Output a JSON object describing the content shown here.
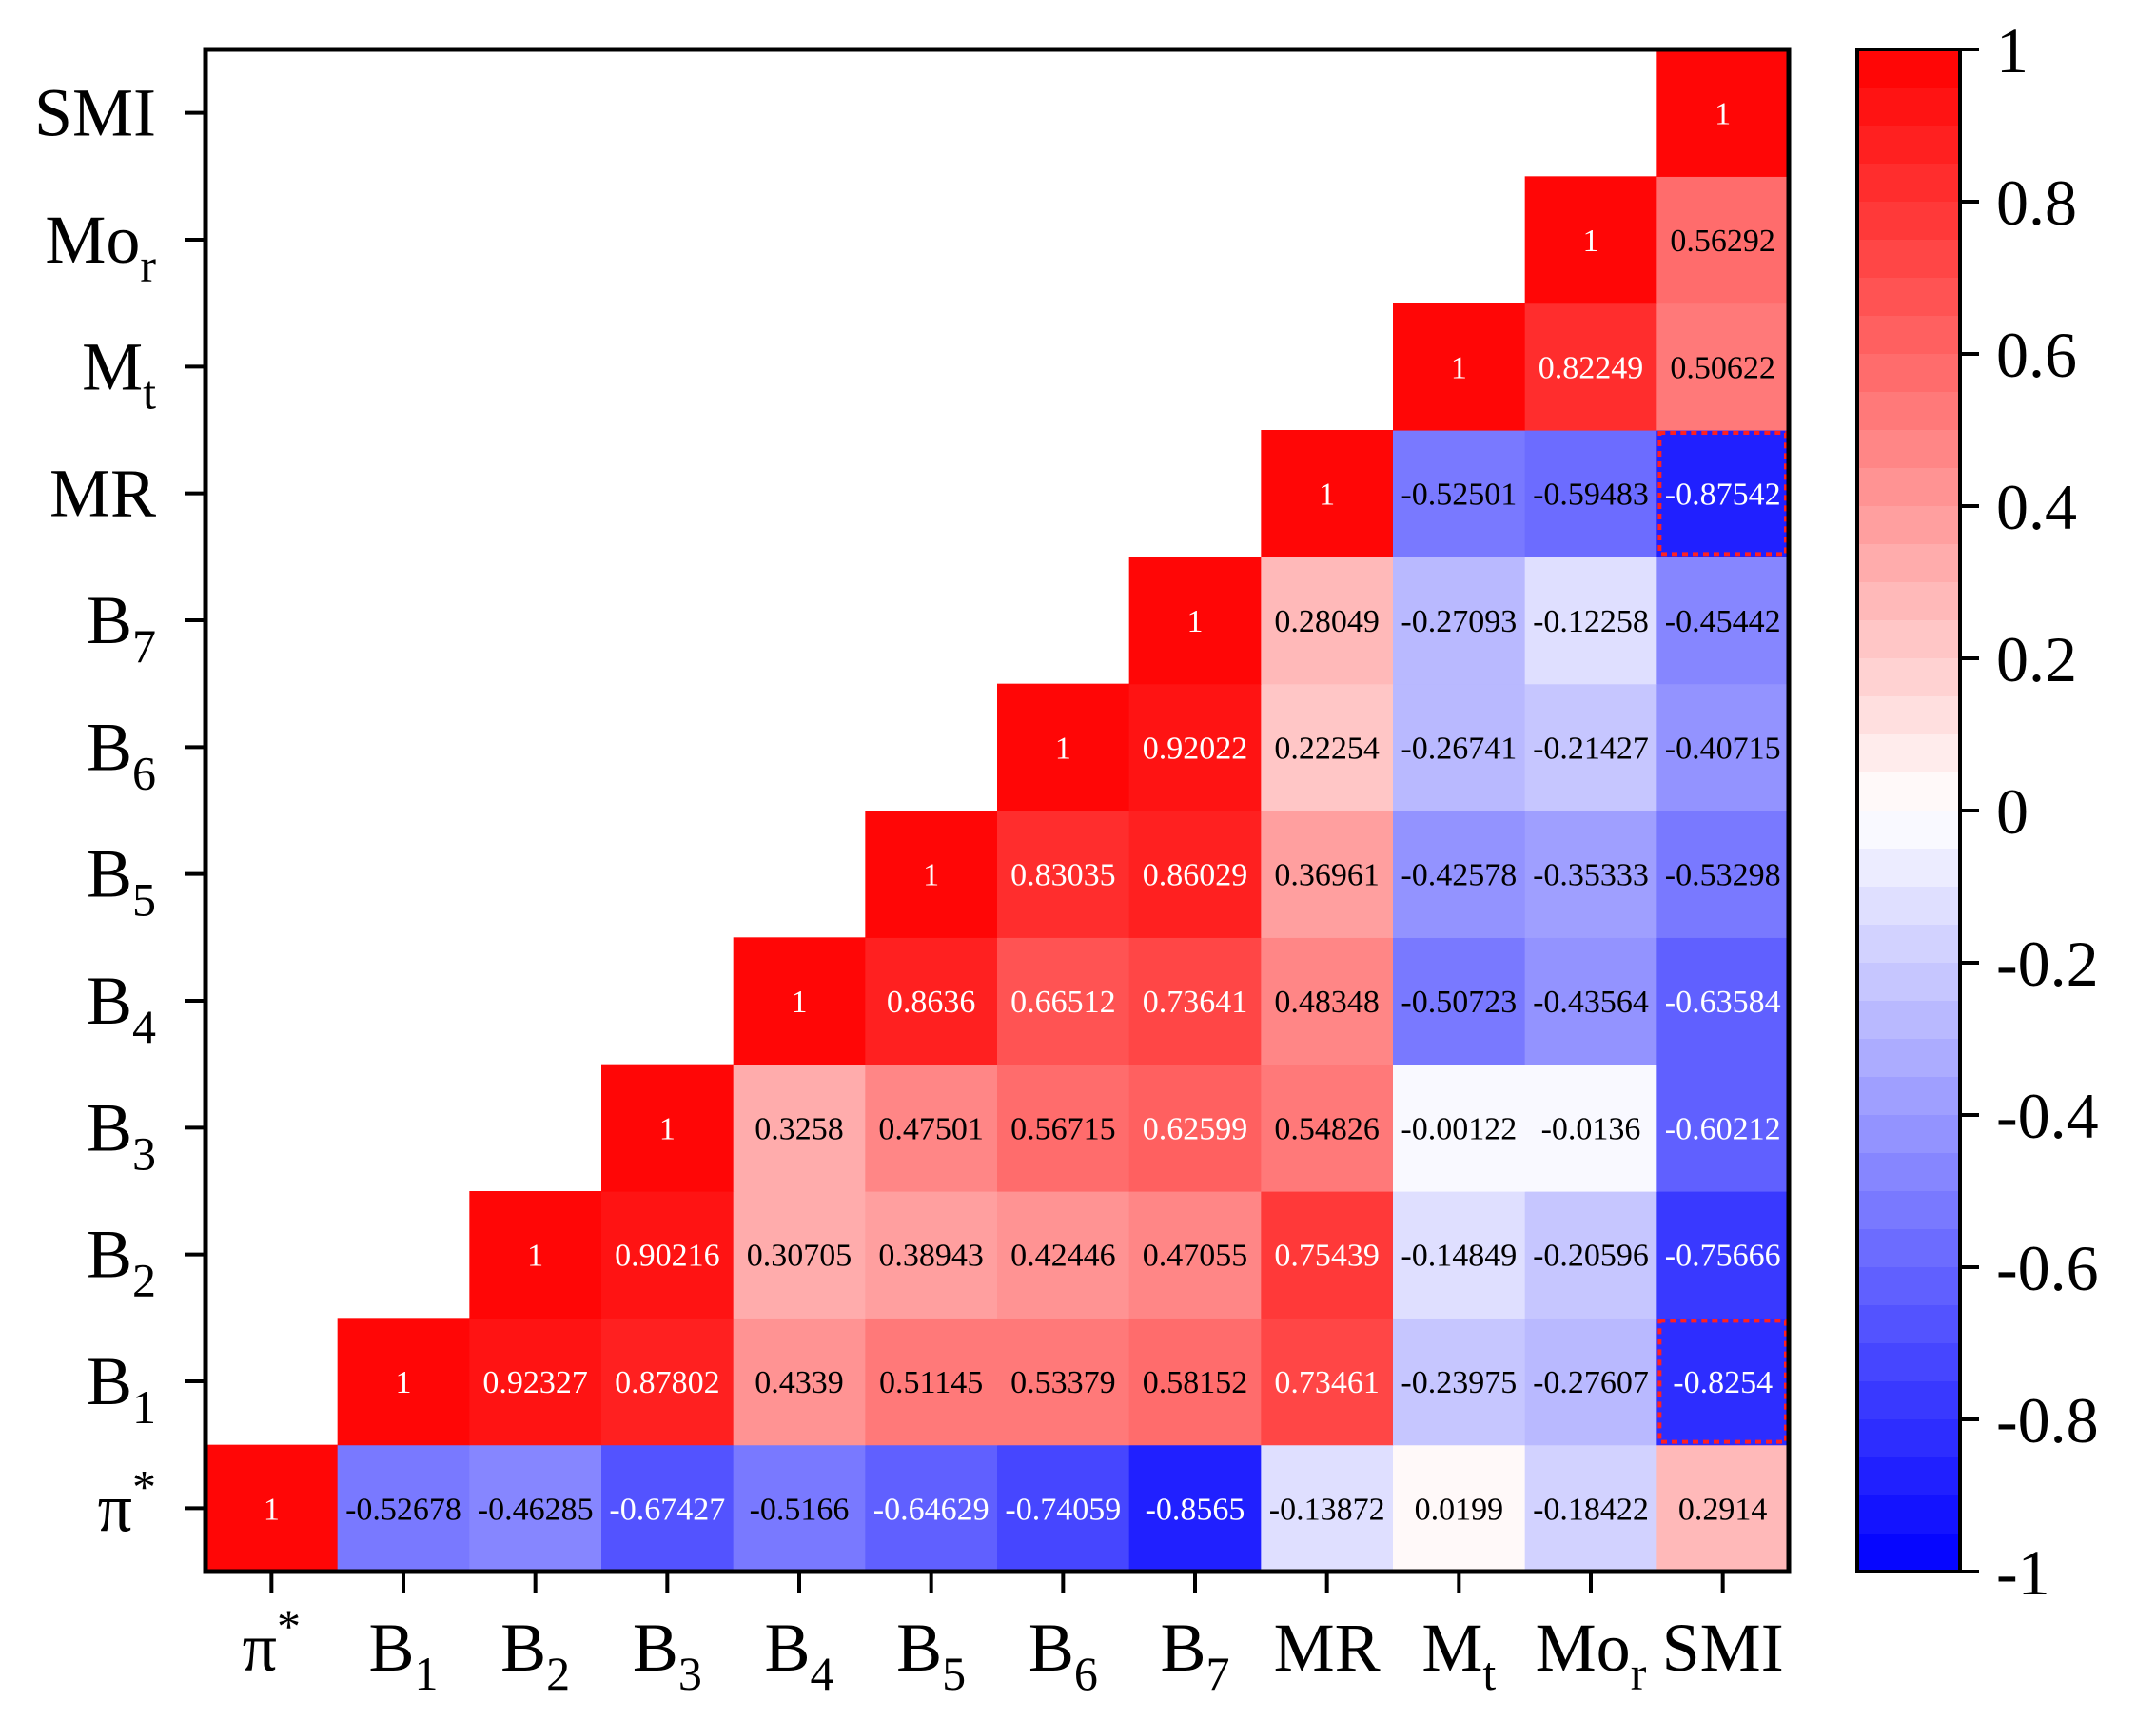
{
  "chart_data": {
    "type": "heatmap",
    "title": "",
    "variables": [
      {
        "base": "π",
        "sup": "*",
        "sub": ""
      },
      {
        "base": "B",
        "sup": "",
        "sub": "1"
      },
      {
        "base": "B",
        "sup": "",
        "sub": "2"
      },
      {
        "base": "B",
        "sup": "",
        "sub": "3"
      },
      {
        "base": "B",
        "sup": "",
        "sub": "4"
      },
      {
        "base": "B",
        "sup": "",
        "sub": "5"
      },
      {
        "base": "B",
        "sup": "",
        "sub": "6"
      },
      {
        "base": "B",
        "sup": "",
        "sub": "7"
      },
      {
        "base": "MR",
        "sup": "",
        "sub": ""
      },
      {
        "base": "M",
        "sup": "",
        "sub": "t"
      },
      {
        "base": "Mo",
        "sup": "",
        "sub": "r"
      },
      {
        "base": "SMI",
        "sup": "",
        "sub": ""
      }
    ],
    "cells": [
      {
        "row": 0,
        "col": 0,
        "value": 1,
        "label": "1"
      },
      {
        "row": 0,
        "col": 1,
        "value": -0.52678,
        "label": "-0.52678"
      },
      {
        "row": 0,
        "col": 2,
        "value": -0.46285,
        "label": "-0.46285"
      },
      {
        "row": 0,
        "col": 3,
        "value": -0.67427,
        "label": "-0.67427"
      },
      {
        "row": 0,
        "col": 4,
        "value": -0.5166,
        "label": "-0.5166"
      },
      {
        "row": 0,
        "col": 5,
        "value": -0.64629,
        "label": "-0.64629"
      },
      {
        "row": 0,
        "col": 6,
        "value": -0.74059,
        "label": "-0.74059"
      },
      {
        "row": 0,
        "col": 7,
        "value": -0.8565,
        "label": "-0.8565"
      },
      {
        "row": 0,
        "col": 8,
        "value": -0.13872,
        "label": "-0.13872"
      },
      {
        "row": 0,
        "col": 9,
        "value": 0.0199,
        "label": "0.0199"
      },
      {
        "row": 0,
        "col": 10,
        "value": -0.18422,
        "label": "-0.18422"
      },
      {
        "row": 0,
        "col": 11,
        "value": 0.2914,
        "label": "0.2914"
      },
      {
        "row": 1,
        "col": 1,
        "value": 1,
        "label": "1"
      },
      {
        "row": 1,
        "col": 2,
        "value": 0.92327,
        "label": "0.92327"
      },
      {
        "row": 1,
        "col": 3,
        "value": 0.87802,
        "label": "0.87802"
      },
      {
        "row": 1,
        "col": 4,
        "value": 0.4339,
        "label": "0.4339"
      },
      {
        "row": 1,
        "col": 5,
        "value": 0.51145,
        "label": "0.51145"
      },
      {
        "row": 1,
        "col": 6,
        "value": 0.53379,
        "label": "0.53379"
      },
      {
        "row": 1,
        "col": 7,
        "value": 0.58152,
        "label": "0.58152"
      },
      {
        "row": 1,
        "col": 8,
        "value": 0.73461,
        "label": "0.73461"
      },
      {
        "row": 1,
        "col": 9,
        "value": -0.23975,
        "label": "-0.23975"
      },
      {
        "row": 1,
        "col": 10,
        "value": -0.27607,
        "label": "-0.27607"
      },
      {
        "row": 1,
        "col": 11,
        "value": -0.8254,
        "label": "-0.8254",
        "highlight": true
      },
      {
        "row": 2,
        "col": 2,
        "value": 1,
        "label": "1"
      },
      {
        "row": 2,
        "col": 3,
        "value": 0.90216,
        "label": "0.90216"
      },
      {
        "row": 2,
        "col": 4,
        "value": 0.30705,
        "label": "0.30705"
      },
      {
        "row": 2,
        "col": 5,
        "value": 0.38943,
        "label": "0.38943"
      },
      {
        "row": 2,
        "col": 6,
        "value": 0.42446,
        "label": "0.42446"
      },
      {
        "row": 2,
        "col": 7,
        "value": 0.47055,
        "label": "0.47055"
      },
      {
        "row": 2,
        "col": 8,
        "value": 0.75439,
        "label": "0.75439"
      },
      {
        "row": 2,
        "col": 9,
        "value": -0.14849,
        "label": "-0.14849"
      },
      {
        "row": 2,
        "col": 10,
        "value": -0.20596,
        "label": "-0.20596"
      },
      {
        "row": 2,
        "col": 11,
        "value": -0.75666,
        "label": "-0.75666"
      },
      {
        "row": 3,
        "col": 3,
        "value": 1,
        "label": "1"
      },
      {
        "row": 3,
        "col": 4,
        "value": 0.3258,
        "label": "0.3258"
      },
      {
        "row": 3,
        "col": 5,
        "value": 0.47501,
        "label": "0.47501"
      },
      {
        "row": 3,
        "col": 6,
        "value": 0.56715,
        "label": "0.56715"
      },
      {
        "row": 3,
        "col": 7,
        "value": 0.62599,
        "label": "0.62599"
      },
      {
        "row": 3,
        "col": 8,
        "value": 0.54826,
        "label": "0.54826"
      },
      {
        "row": 3,
        "col": 9,
        "value": -0.00122,
        "label": "-0.00122"
      },
      {
        "row": 3,
        "col": 10,
        "value": -0.0136,
        "label": "-0.0136"
      },
      {
        "row": 3,
        "col": 11,
        "value": -0.60212,
        "label": "-0.60212"
      },
      {
        "row": 4,
        "col": 4,
        "value": 1,
        "label": "1"
      },
      {
        "row": 4,
        "col": 5,
        "value": 0.8636,
        "label": "0.8636"
      },
      {
        "row": 4,
        "col": 6,
        "value": 0.66512,
        "label": "0.66512"
      },
      {
        "row": 4,
        "col": 7,
        "value": 0.73641,
        "label": "0.73641"
      },
      {
        "row": 4,
        "col": 8,
        "value": 0.48348,
        "label": "0.48348"
      },
      {
        "row": 4,
        "col": 9,
        "value": -0.50723,
        "label": "-0.50723"
      },
      {
        "row": 4,
        "col": 10,
        "value": -0.43564,
        "label": "-0.43564"
      },
      {
        "row": 4,
        "col": 11,
        "value": -0.63584,
        "label": "-0.63584"
      },
      {
        "row": 5,
        "col": 5,
        "value": 1,
        "label": "1"
      },
      {
        "row": 5,
        "col": 6,
        "value": 0.83035,
        "label": "0.83035"
      },
      {
        "row": 5,
        "col": 7,
        "value": 0.86029,
        "label": "0.86029"
      },
      {
        "row": 5,
        "col": 8,
        "value": 0.36961,
        "label": "0.36961"
      },
      {
        "row": 5,
        "col": 9,
        "value": -0.42578,
        "label": "-0.42578"
      },
      {
        "row": 5,
        "col": 10,
        "value": -0.35333,
        "label": "-0.35333"
      },
      {
        "row": 5,
        "col": 11,
        "value": -0.53298,
        "label": "-0.53298"
      },
      {
        "row": 6,
        "col": 6,
        "value": 1,
        "label": "1"
      },
      {
        "row": 6,
        "col": 7,
        "value": 0.92022,
        "label": "0.92022"
      },
      {
        "row": 6,
        "col": 8,
        "value": 0.22254,
        "label": "0.22254"
      },
      {
        "row": 6,
        "col": 9,
        "value": -0.26741,
        "label": "-0.26741"
      },
      {
        "row": 6,
        "col": 10,
        "value": -0.21427,
        "label": "-0.21427"
      },
      {
        "row": 6,
        "col": 11,
        "value": -0.40715,
        "label": "-0.40715"
      },
      {
        "row": 7,
        "col": 7,
        "value": 1,
        "label": "1"
      },
      {
        "row": 7,
        "col": 8,
        "value": 0.28049,
        "label": "0.28049"
      },
      {
        "row": 7,
        "col": 9,
        "value": -0.27093,
        "label": "-0.27093"
      },
      {
        "row": 7,
        "col": 10,
        "value": -0.12258,
        "label": "-0.12258"
      },
      {
        "row": 7,
        "col": 11,
        "value": -0.45442,
        "label": "-0.45442"
      },
      {
        "row": 8,
        "col": 8,
        "value": 1,
        "label": "1"
      },
      {
        "row": 8,
        "col": 9,
        "value": -0.52501,
        "label": "-0.52501"
      },
      {
        "row": 8,
        "col": 10,
        "value": -0.59483,
        "label": "-0.59483"
      },
      {
        "row": 8,
        "col": 11,
        "value": -0.87542,
        "label": "-0.87542",
        "highlight": true
      },
      {
        "row": 9,
        "col": 9,
        "value": 1,
        "label": "1"
      },
      {
        "row": 9,
        "col": 10,
        "value": 0.82249,
        "label": "0.82249"
      },
      {
        "row": 9,
        "col": 11,
        "value": 0.50622,
        "label": "0.50622"
      },
      {
        "row": 10,
        "col": 10,
        "value": 1,
        "label": "1"
      },
      {
        "row": 10,
        "col": 11,
        "value": 0.56292,
        "label": "0.56292"
      },
      {
        "row": 11,
        "col": 11,
        "value": 1,
        "label": "1"
      }
    ],
    "colorbar": {
      "range": [
        -1,
        1
      ],
      "ticks": [
        {
          "value": 1,
          "label": "1"
        },
        {
          "value": 0.8,
          "label": "0.8"
        },
        {
          "value": 0.6,
          "label": "0.6"
        },
        {
          "value": 0.4,
          "label": "0.4"
        },
        {
          "value": 0.2,
          "label": "0.2"
        },
        {
          "value": 0,
          "label": "0"
        },
        {
          "value": -0.2,
          "label": "-0.2"
        },
        {
          "value": -0.4,
          "label": "-0.4"
        },
        {
          "value": -0.6,
          "label": "-0.6"
        },
        {
          "value": -0.8,
          "label": "-0.8"
        },
        {
          "value": -1,
          "label": "-1"
        }
      ],
      "max_color": "#ff0000",
      "mid_color": "#ffffff",
      "min_color": "#0000ff",
      "steps": 40
    },
    "highlight_color": "#ff2020"
  }
}
